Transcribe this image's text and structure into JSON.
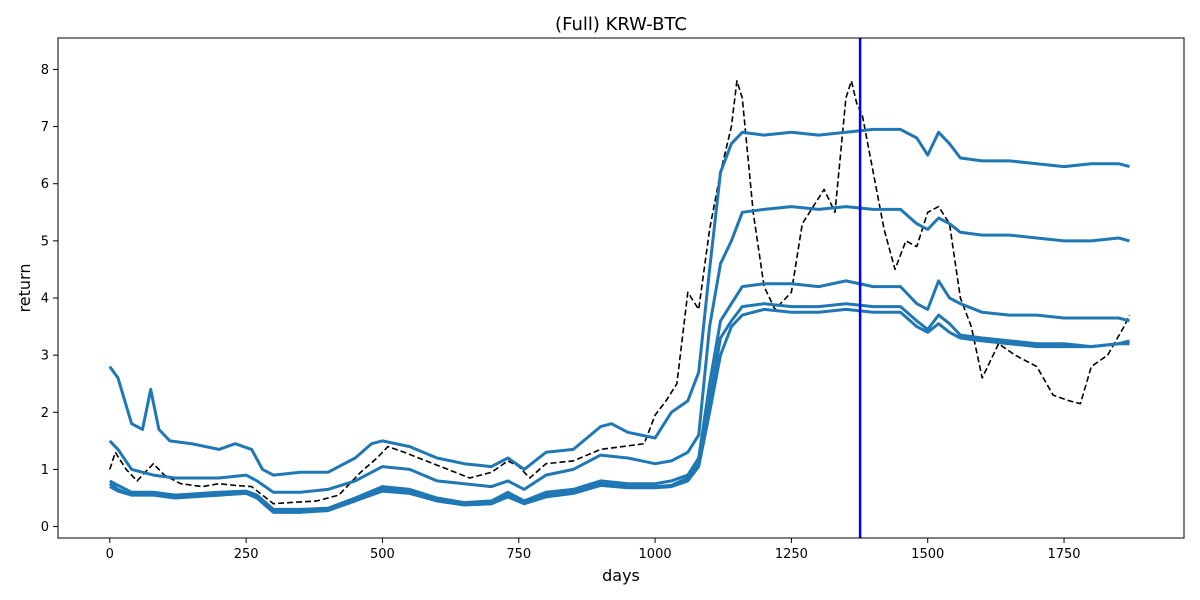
{
  "chart_data": {
    "type": "line",
    "title": "(Full) KRW-BTC",
    "xlabel": "days",
    "ylabel": "return",
    "xlim": [
      -95,
      1970
    ],
    "ylim": [
      -0.2,
      8.55
    ],
    "xticks": [
      0,
      250,
      500,
      750,
      1000,
      1250,
      1500,
      1750
    ],
    "yticks": [
      0,
      1,
      2,
      3,
      4,
      5,
      6,
      7,
      8
    ],
    "grid": false,
    "legend": "none",
    "vertical_line": {
      "x": 1376,
      "color": "#0000ff"
    },
    "series": [
      {
        "style": "dashed",
        "color": "#000000",
        "x": [
          0,
          10,
          30,
          50,
          80,
          100,
          130,
          170,
          200,
          230,
          260,
          280,
          300,
          330,
          380,
          420,
          460,
          490,
          510,
          540,
          580,
          620,
          660,
          700,
          730,
          750,
          770,
          800,
          850,
          900,
          940,
          980,
          1000,
          1020,
          1040,
          1060,
          1080,
          1100,
          1120,
          1140,
          1150,
          1160,
          1180,
          1200,
          1220,
          1250,
          1270,
          1290,
          1310,
          1330,
          1350,
          1360,
          1370,
          1380,
          1400,
          1420,
          1440,
          1460,
          1480,
          1500,
          1520,
          1540,
          1560,
          1580,
          1600,
          1630,
          1660,
          1700,
          1730,
          1760,
          1780,
          1800,
          1830,
          1860,
          1870
        ],
        "y": [
          1.0,
          1.3,
          1.0,
          0.8,
          1.1,
          0.9,
          0.75,
          0.7,
          0.75,
          0.72,
          0.7,
          0.55,
          0.4,
          0.42,
          0.45,
          0.55,
          0.95,
          1.2,
          1.4,
          1.3,
          1.15,
          1.0,
          0.85,
          0.95,
          1.15,
          1.05,
          0.85,
          1.1,
          1.15,
          1.35,
          1.4,
          1.45,
          1.95,
          2.2,
          2.5,
          4.1,
          3.8,
          5.2,
          6.2,
          7.0,
          7.8,
          7.5,
          5.5,
          4.2,
          3.8,
          4.1,
          5.3,
          5.6,
          5.9,
          5.5,
          7.5,
          7.8,
          7.4,
          7.2,
          6.2,
          5.2,
          4.5,
          5.0,
          4.9,
          5.5,
          5.6,
          5.3,
          4.0,
          3.5,
          2.6,
          3.2,
          3.0,
          2.8,
          2.3,
          2.2,
          2.15,
          2.8,
          3.0,
          3.5,
          3.7
        ]
      },
      {
        "style": "solid",
        "color": "#1f77b4",
        "x": [
          0,
          15,
          40,
          60,
          75,
          90,
          110,
          150,
          200,
          230,
          260,
          280,
          300,
          350,
          400,
          450,
          480,
          500,
          550,
          600,
          650,
          700,
          730,
          760,
          800,
          850,
          900,
          920,
          950,
          1000,
          1030,
          1060,
          1080,
          1100,
          1120,
          1140,
          1160,
          1200,
          1250,
          1300,
          1350,
          1400,
          1450,
          1480,
          1500,
          1520,
          1540,
          1560,
          1600,
          1650,
          1700,
          1750,
          1800,
          1850,
          1870
        ],
        "y": [
          2.8,
          2.6,
          1.8,
          1.7,
          2.4,
          1.7,
          1.5,
          1.45,
          1.35,
          1.45,
          1.35,
          1.0,
          0.9,
          0.95,
          0.95,
          1.2,
          1.45,
          1.5,
          1.4,
          1.2,
          1.1,
          1.05,
          1.2,
          1.0,
          1.3,
          1.35,
          1.75,
          1.8,
          1.65,
          1.55,
          2.0,
          2.2,
          2.7,
          4.5,
          6.2,
          6.7,
          6.9,
          6.85,
          6.9,
          6.85,
          6.9,
          6.95,
          6.95,
          6.8,
          6.5,
          6.9,
          6.7,
          6.45,
          6.4,
          6.4,
          6.35,
          6.3,
          6.35,
          6.35,
          6.3
        ]
      },
      {
        "style": "solid",
        "color": "#1f77b4",
        "x": [
          0,
          15,
          40,
          80,
          120,
          200,
          250,
          270,
          300,
          350,
          400,
          450,
          500,
          550,
          600,
          650,
          700,
          730,
          760,
          800,
          850,
          900,
          950,
          1000,
          1030,
          1060,
          1080,
          1100,
          1120,
          1140,
          1160,
          1200,
          1250,
          1300,
          1350,
          1400,
          1450,
          1480,
          1500,
          1520,
          1540,
          1560,
          1600,
          1650,
          1700,
          1750,
          1800,
          1850,
          1870
        ],
        "y": [
          1.5,
          1.35,
          1.0,
          0.9,
          0.85,
          0.85,
          0.9,
          0.8,
          0.6,
          0.6,
          0.65,
          0.8,
          1.05,
          1.0,
          0.8,
          0.75,
          0.7,
          0.8,
          0.65,
          0.9,
          1.0,
          1.25,
          1.2,
          1.1,
          1.15,
          1.3,
          1.6,
          3.5,
          4.6,
          5.0,
          5.5,
          5.55,
          5.6,
          5.55,
          5.6,
          5.55,
          5.55,
          5.3,
          5.2,
          5.4,
          5.3,
          5.15,
          5.1,
          5.1,
          5.05,
          5.0,
          5.0,
          5.05,
          5.0
        ]
      },
      {
        "style": "solid",
        "color": "#1f77b4",
        "x": [
          0,
          15,
          40,
          80,
          120,
          200,
          250,
          270,
          300,
          350,
          400,
          450,
          500,
          550,
          600,
          650,
          700,
          730,
          760,
          800,
          850,
          900,
          950,
          1000,
          1030,
          1060,
          1080,
          1100,
          1120,
          1140,
          1160,
          1200,
          1250,
          1300,
          1350,
          1400,
          1450,
          1480,
          1500,
          1520,
          1540,
          1560,
          1600,
          1650,
          1700,
          1750,
          1800,
          1850,
          1870
        ],
        "y": [
          0.8,
          0.72,
          0.6,
          0.6,
          0.55,
          0.6,
          0.62,
          0.55,
          0.3,
          0.3,
          0.32,
          0.5,
          0.7,
          0.65,
          0.5,
          0.42,
          0.45,
          0.6,
          0.45,
          0.6,
          0.65,
          0.8,
          0.75,
          0.75,
          0.8,
          0.9,
          1.2,
          2.5,
          3.6,
          3.9,
          4.2,
          4.25,
          4.25,
          4.2,
          4.3,
          4.2,
          4.2,
          3.9,
          3.8,
          4.3,
          4.0,
          3.9,
          3.75,
          3.7,
          3.7,
          3.65,
          3.65,
          3.65,
          3.6
        ]
      },
      {
        "style": "solid",
        "color": "#1f77b4",
        "x": [
          0,
          15,
          40,
          80,
          120,
          200,
          250,
          270,
          300,
          350,
          400,
          450,
          500,
          550,
          600,
          650,
          700,
          730,
          760,
          800,
          850,
          900,
          950,
          1000,
          1030,
          1060,
          1080,
          1100,
          1120,
          1140,
          1160,
          1200,
          1250,
          1300,
          1350,
          1400,
          1450,
          1480,
          1500,
          1520,
          1540,
          1560,
          1600,
          1650,
          1700,
          1750,
          1800,
          1850,
          1870
        ],
        "y": [
          0.75,
          0.65,
          0.55,
          0.58,
          0.52,
          0.55,
          0.6,
          0.5,
          0.25,
          0.25,
          0.28,
          0.45,
          0.65,
          0.6,
          0.45,
          0.38,
          0.4,
          0.55,
          0.4,
          0.55,
          0.6,
          0.75,
          0.7,
          0.7,
          0.72,
          0.85,
          1.1,
          2.2,
          3.3,
          3.6,
          3.85,
          3.9,
          3.85,
          3.85,
          3.9,
          3.85,
          3.85,
          3.6,
          3.45,
          3.7,
          3.55,
          3.35,
          3.3,
          3.25,
          3.2,
          3.2,
          3.15,
          3.2,
          3.2
        ]
      },
      {
        "style": "solid",
        "color": "#1f77b4",
        "x": [
          0,
          15,
          40,
          80,
          120,
          200,
          250,
          270,
          300,
          350,
          400,
          450,
          500,
          550,
          600,
          650,
          700,
          730,
          760,
          800,
          850,
          900,
          950,
          1000,
          1030,
          1060,
          1080,
          1100,
          1120,
          1140,
          1160,
          1200,
          1250,
          1300,
          1350,
          1400,
          1450,
          1480,
          1500,
          1520,
          1540,
          1560,
          1600,
          1650,
          1700,
          1750,
          1800,
          1850,
          1870
        ],
        "y": [
          0.7,
          0.62,
          0.55,
          0.55,
          0.5,
          0.55,
          0.58,
          0.5,
          0.25,
          0.25,
          0.3,
          0.45,
          0.62,
          0.58,
          0.45,
          0.38,
          0.4,
          0.52,
          0.4,
          0.52,
          0.58,
          0.72,
          0.68,
          0.68,
          0.7,
          0.8,
          1.05,
          2.0,
          3.0,
          3.5,
          3.7,
          3.8,
          3.75,
          3.75,
          3.8,
          3.75,
          3.75,
          3.5,
          3.4,
          3.55,
          3.4,
          3.3,
          3.25,
          3.2,
          3.15,
          3.15,
          3.15,
          3.2,
          3.25
        ]
      }
    ]
  }
}
